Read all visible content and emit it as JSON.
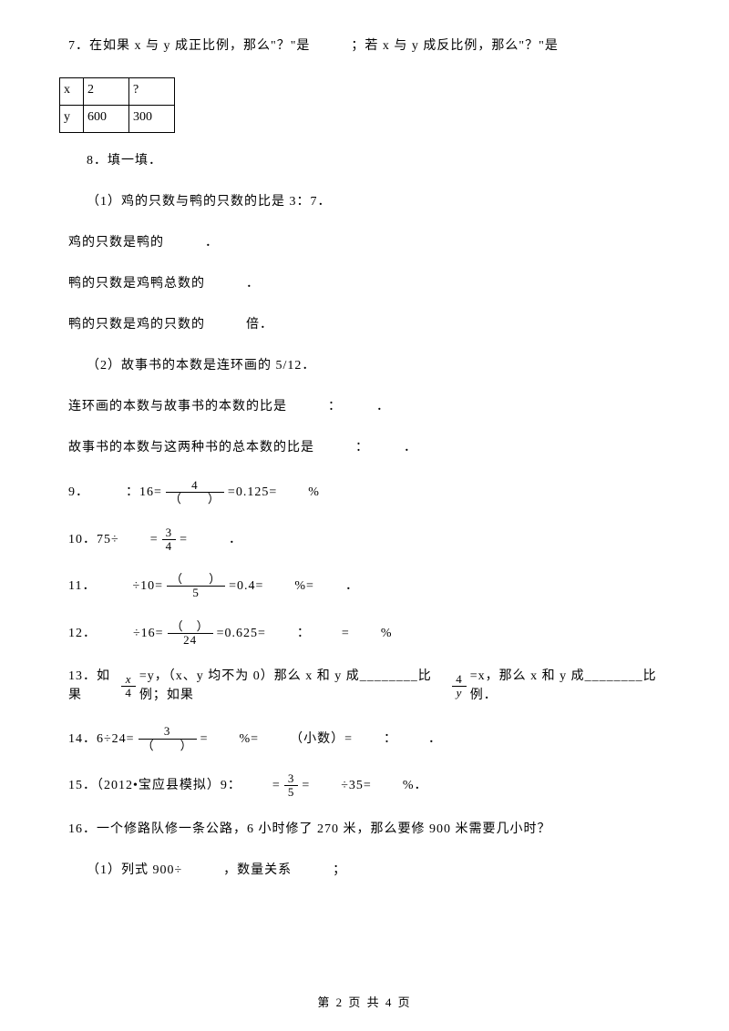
{
  "q7": {
    "text": "7．在如果 x 与 y 成正比例，那么\"？\"是　　　；若 x 与 y 成反比例，那么\"？\"是",
    "table": {
      "r1": {
        "c1": "x",
        "c2": "2",
        "c3": "?"
      },
      "r2": {
        "c1": "y",
        "c2": "600",
        "c3": "300"
      }
    }
  },
  "q8": {
    "title": "8．填一填．",
    "l1": "（1）鸡的只数与鸭的只数的比是 3：7．",
    "l2": "鸡的只数是鸭的　　　．",
    "l3": "鸭的只数是鸡鸭总数的　　　．",
    "l4": "鸭的只数是鸡的只数的　　　倍．",
    "l5": "（2）故事书的本数是连环画的 5/12．",
    "l6": "连环画的本数与故事书的本数的比是　　　：　　　．",
    "l7": "故事书的本数与这两种书的总本数的比是　　　：　　　．"
  },
  "q9": {
    "pre": "9．",
    "blank": "　　",
    "mid1": "：16=",
    "num": "4",
    "den": "（　　）",
    "mid2": "=0.125=",
    "tail": "%"
  },
  "q10": {
    "pre": "10．75÷",
    "blank": "　　",
    "mid": "=",
    "num": "3",
    "den": "4",
    "tail": "=　　　．"
  },
  "q11": {
    "pre": "11．",
    "blank": "　　",
    "mid1": "÷10=",
    "num": "（　　）",
    "den": "5",
    "mid2": "=0.4=",
    "tail1": "%=",
    "tail2": "．"
  },
  "q12": {
    "pre": "12．",
    "blank": "　　",
    "mid1": "÷16=",
    "num": "（　）",
    "den": "24",
    "mid2": "=0.625=",
    "colon": "：",
    "eq": "=",
    "tail": "%"
  },
  "q13": {
    "pre": "13．如果 ",
    "num1": "x",
    "den1": "4",
    "mid1": "=y，（x、y 均不为 0）那么 x 和 y 成________比例；如果 ",
    "num2": "4",
    "den2": "y",
    "mid2": "=x，那么 x 和 y 成________比例．"
  },
  "q14": {
    "pre": "14．6÷24=",
    "num": "3",
    "den": "（　　）",
    "mid": "=",
    "tail1": "%=",
    "tail2": "（小数）=",
    "colon": "：",
    "tail3": "．"
  },
  "q15": {
    "pre": "15．（2012•宝应县模拟）9：",
    "blank": "　　",
    "eq1": "=",
    "num": "3",
    "den": "5",
    "eq2": "=",
    "mid": "÷35=",
    "tail": "%．"
  },
  "q16": {
    "l1": "16．一个修路队修一条公路，6 小时修了 270 米，那么要修 900 米需要几小时？",
    "l2": "（1）列式 900÷　　　，数量关系　　　；"
  },
  "footer": "第 2 页 共 4 页"
}
